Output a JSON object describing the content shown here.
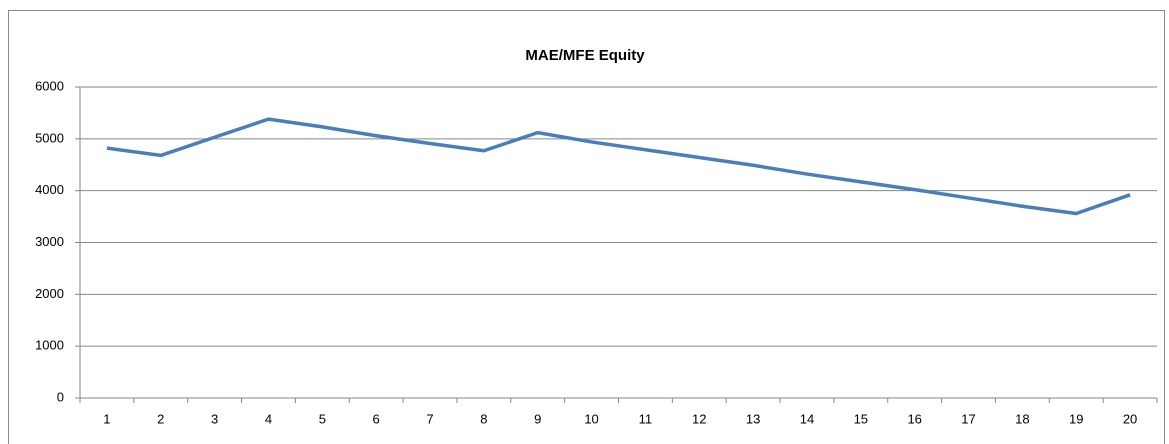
{
  "chart_data": {
    "type": "line",
    "title": "MAE/MFE Equity",
    "categories": [
      "1",
      "2",
      "3",
      "4",
      "5",
      "6",
      "7",
      "8",
      "9",
      "10",
      "11",
      "12",
      "13",
      "14",
      "15",
      "16",
      "17",
      "18",
      "19",
      "20"
    ],
    "series": [
      {
        "name": null,
        "color": "#4a7ebb",
        "values": [
          4820,
          4680,
          5030,
          5380,
          5230,
          5060,
          4910,
          4770,
          5120,
          4940,
          4790,
          4640,
          4490,
          4320,
          4170,
          4020,
          3860,
          3700,
          3560,
          3920
        ]
      }
    ],
    "ylim": [
      0,
      6000
    ],
    "yticks": [
      0,
      1000,
      2000,
      3000,
      4000,
      5000,
      6000
    ],
    "grid": true,
    "legend": false
  }
}
